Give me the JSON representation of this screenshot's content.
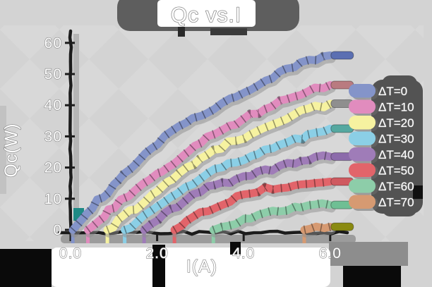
{
  "chart_data": {
    "type": "line",
    "title": "Qc vs.I",
    "xlabel": "I(A)",
    "ylabel": "Qc(W)",
    "xlim": [
      0,
      6.5
    ],
    "ylim": [
      0,
      62
    ],
    "grid": false,
    "xticks": [
      "0.0",
      "2.0",
      "4.0",
      "6.0"
    ],
    "xtick_values": [
      0,
      2,
      4,
      6
    ],
    "yticks": [
      "0",
      "10",
      "20",
      "30",
      "40",
      "50",
      "60"
    ],
    "ytick_values": [
      0,
      10,
      20,
      30,
      40,
      50,
      60
    ],
    "legend": {
      "position": "right",
      "entries": [
        "ΔT=0",
        "ΔT=10",
        "ΔT=20",
        "ΔT=30",
        "ΔT=40",
        "ΔT=50",
        "ΔT=60",
        "ΔT=70"
      ]
    },
    "series": [
      {
        "name": "ΔT=0",
        "color": "#8494c9",
        "end_color": "#5b6fb2",
        "points": [
          [
            0.05,
            0
          ],
          [
            0.5,
            7.5
          ],
          [
            1,
            14
          ],
          [
            1.5,
            21
          ],
          [
            2,
            28
          ],
          [
            2.5,
            32.5
          ],
          [
            3,
            36.5
          ],
          [
            3.5,
            40.5
          ],
          [
            4,
            44
          ],
          [
            4.5,
            48
          ],
          [
            5,
            51.5
          ],
          [
            5.5,
            54
          ],
          [
            6,
            56
          ]
        ]
      },
      {
        "name": "ΔT=10",
        "color": "#e18cbe",
        "end_color": "#b97b80",
        "points": [
          [
            0.4,
            0
          ],
          [
            1,
            7.5
          ],
          [
            1.5,
            12.5
          ],
          [
            2,
            17.5
          ],
          [
            2.5,
            23
          ],
          [
            3,
            28.5
          ],
          [
            3.5,
            32
          ],
          [
            4,
            35.5
          ],
          [
            4.5,
            39
          ],
          [
            5,
            42
          ],
          [
            5.5,
            44.5
          ],
          [
            6,
            46.5
          ]
        ]
      },
      {
        "name": "ΔT=20",
        "color": "#f6f2a0",
        "end_color": "#8f8f8f",
        "points": [
          [
            0.85,
            0
          ],
          [
            1.5,
            7
          ],
          [
            2,
            12.5
          ],
          [
            2.5,
            18
          ],
          [
            3,
            23
          ],
          [
            3.5,
            26.5
          ],
          [
            4,
            30
          ],
          [
            4.5,
            33
          ],
          [
            5,
            36
          ],
          [
            5.5,
            38.5
          ],
          [
            6,
            40.5
          ]
        ]
      },
      {
        "name": "ΔT=30",
        "color": "#8bcfe6",
        "end_color": "#55a8a0",
        "points": [
          [
            1.25,
            0
          ],
          [
            2,
            7
          ],
          [
            2.5,
            12
          ],
          [
            3,
            16.5
          ],
          [
            3.5,
            20
          ],
          [
            4,
            23
          ],
          [
            4.5,
            25.5
          ],
          [
            5,
            28
          ],
          [
            5.5,
            30.5
          ],
          [
            6,
            32.5
          ]
        ]
      },
      {
        "name": "ΔT=40",
        "color": "#9f7cb8",
        "end_color": "#8c6bab",
        "points": [
          [
            1.7,
            0
          ],
          [
            2.5,
            8
          ],
          [
            3,
            12.5
          ],
          [
            3.5,
            15
          ],
          [
            4,
            17
          ],
          [
            4.5,
            19
          ],
          [
            5,
            21
          ],
          [
            5.5,
            22.5
          ],
          [
            6,
            23.5
          ]
        ]
      },
      {
        "name": "ΔT=50",
        "color": "#e2646a",
        "end_color": "#cf5a60",
        "points": [
          [
            2.4,
            0
          ],
          [
            3,
            5.5
          ],
          [
            3.5,
            8.5
          ],
          [
            4,
            11
          ],
          [
            4.5,
            13
          ],
          [
            5,
            14
          ],
          [
            5.5,
            15
          ],
          [
            6,
            15.5
          ]
        ]
      },
      {
        "name": "ΔT=60",
        "color": "#8dcda9",
        "end_color": "#6fbf94",
        "points": [
          [
            3.3,
            0
          ],
          [
            4,
            3.5
          ],
          [
            4.5,
            5.5
          ],
          [
            5,
            6.5
          ],
          [
            5.5,
            7.5
          ],
          [
            6,
            8
          ]
        ]
      },
      {
        "name": "ΔT=70",
        "color": "#d69a72",
        "end_color": "#8a8a10",
        "points": [
          [
            5.4,
            0
          ],
          [
            5.7,
            0.5
          ],
          [
            6,
            1
          ]
        ]
      }
    ]
  },
  "colors": {
    "background": "#d3d3d3",
    "pattern_diamond": "#dddddd",
    "spine": "#1c1c1c",
    "spine_shadow": "#9c9c9c",
    "text_fill": "#ffffff",
    "text_outline": "#868686",
    "shadow_blob": "#565656",
    "black_blob": "#0a0a0a",
    "panel": "#ffffff"
  }
}
